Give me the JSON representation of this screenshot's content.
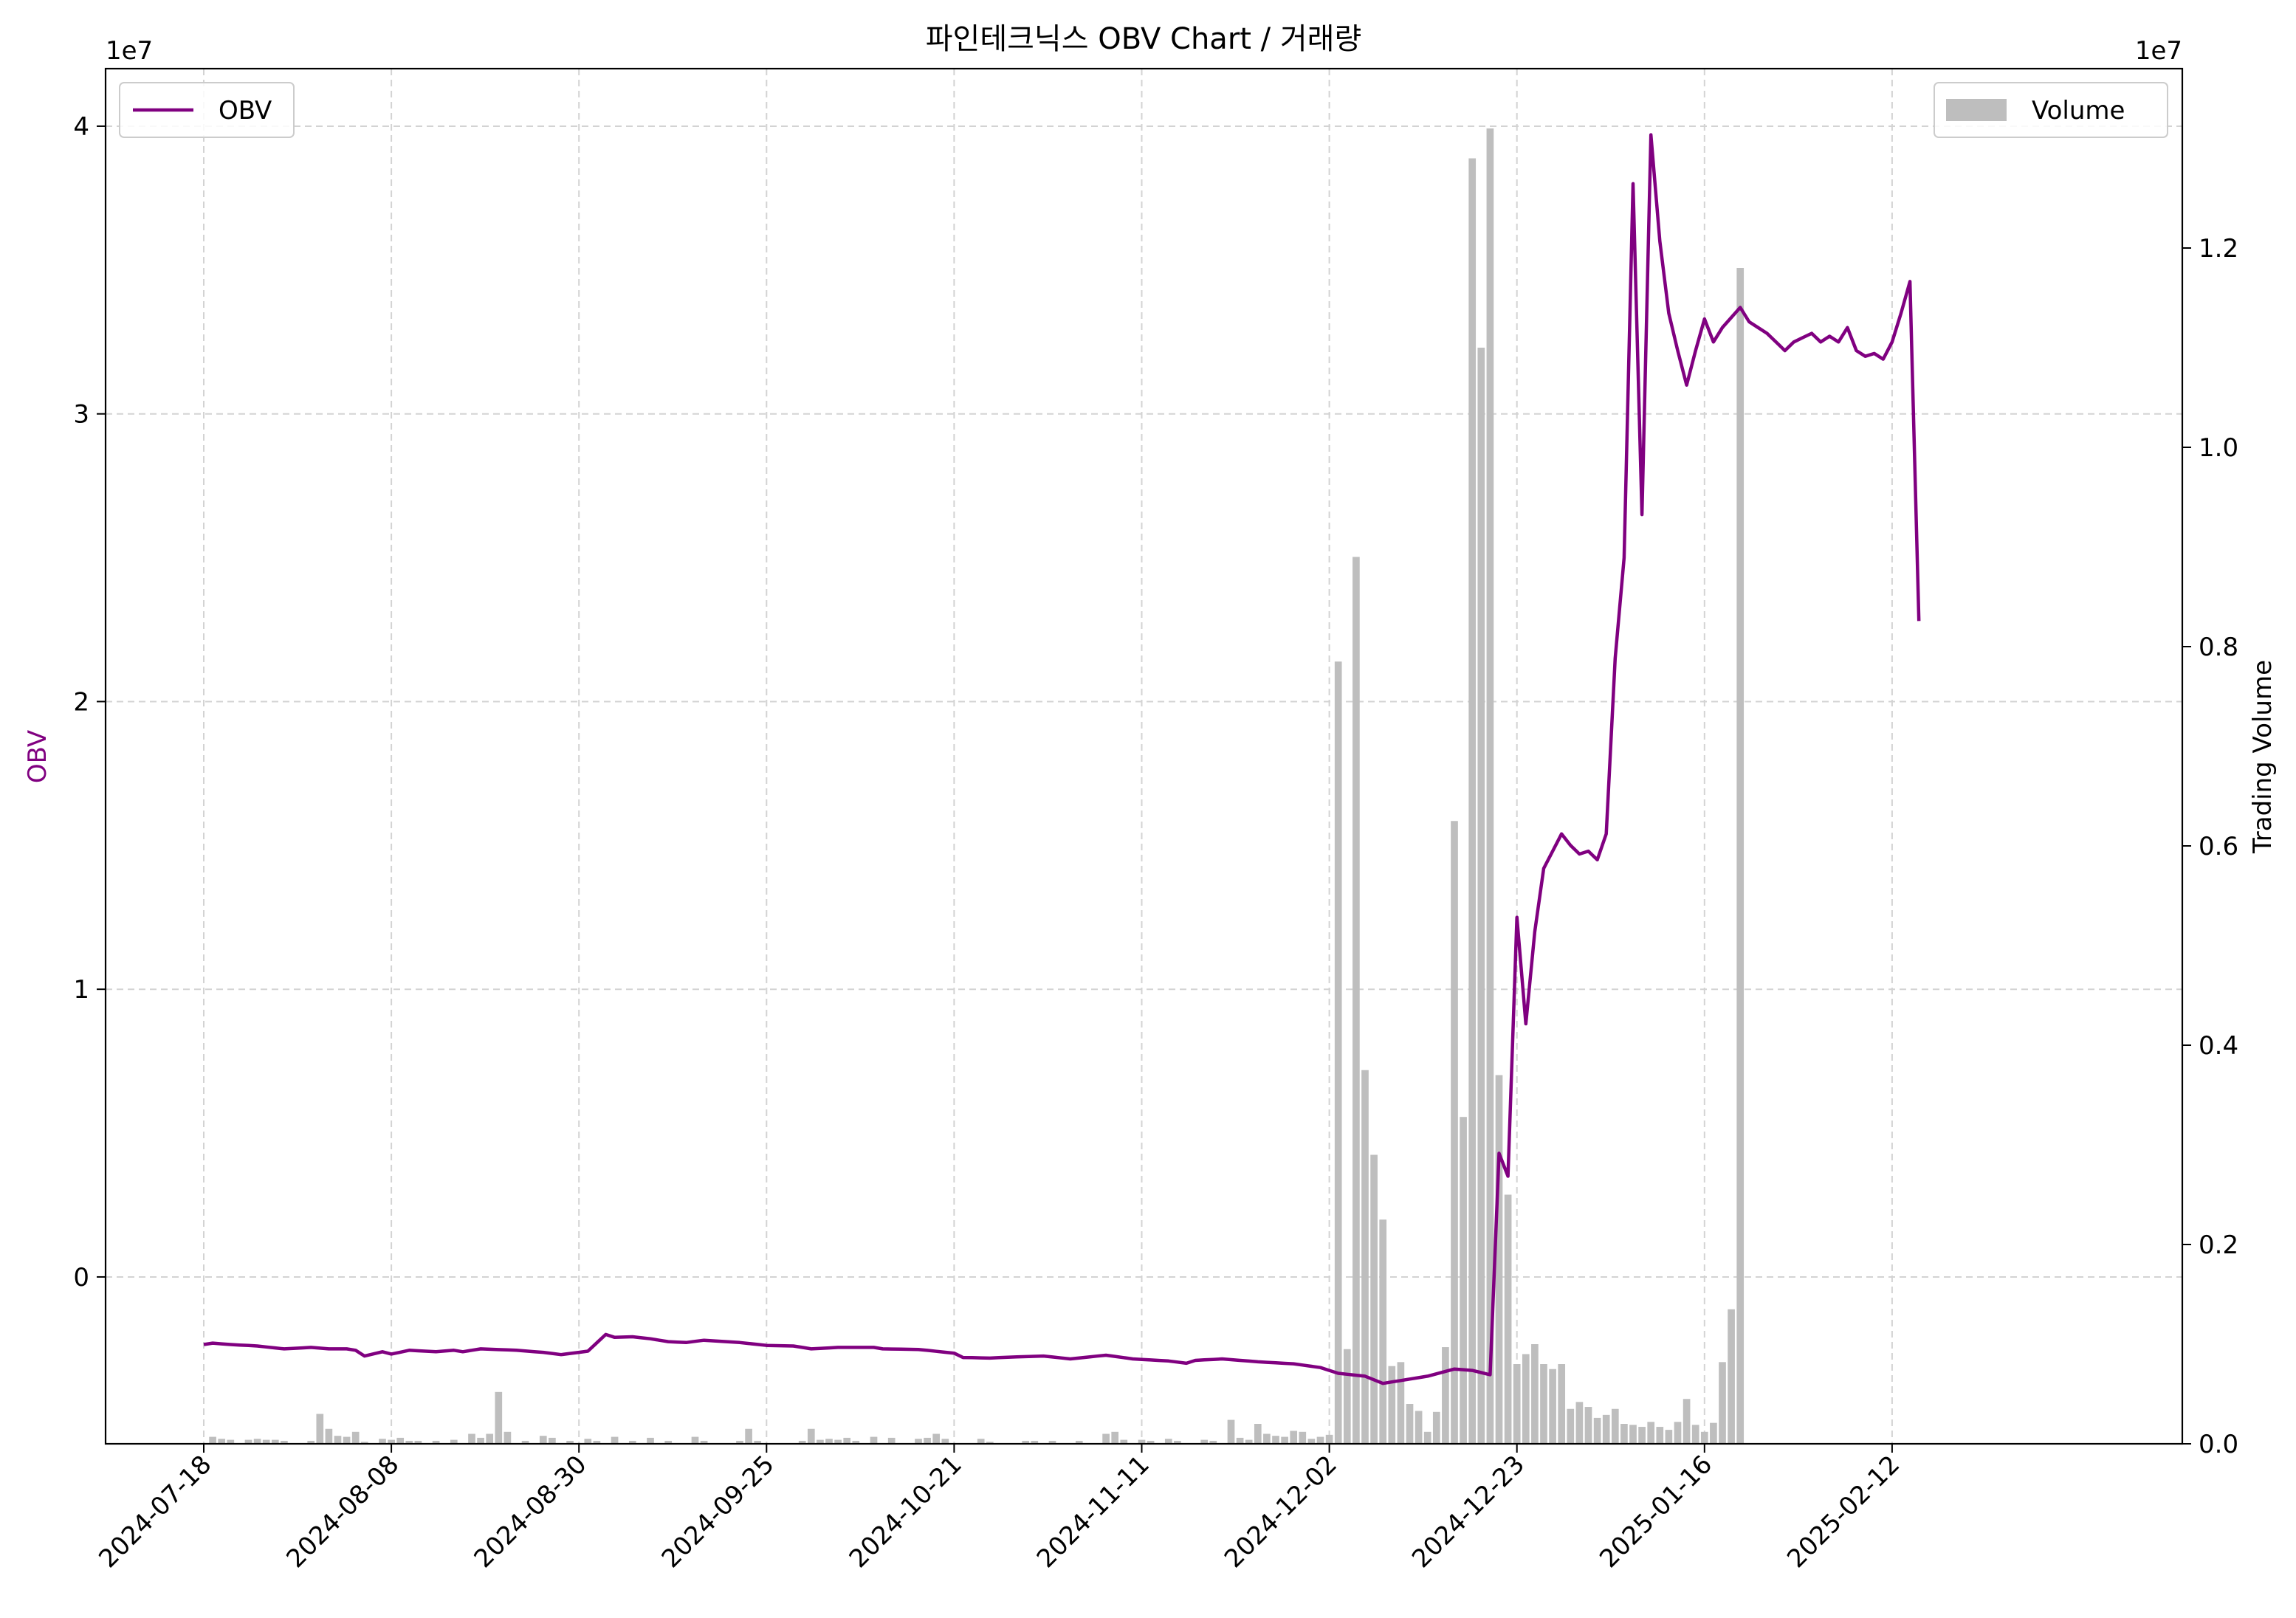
{
  "chart_data": {
    "type": "line+bar",
    "title": "파인테크닉스 OBV Chart / 거래량",
    "xlabel": "",
    "ylabel_left": "OBV",
    "ylabel_right": "Trading Volume",
    "left_axis": {
      "exponent_label": "1e7",
      "ylim": [
        -0.58,
        4.2
      ],
      "ticks": [
        0,
        1,
        2,
        3,
        4
      ],
      "tick_labels": [
        "0",
        "1",
        "2",
        "3",
        "4"
      ]
    },
    "right_axis": {
      "exponent_label": "1e7",
      "ylim": [
        0,
        1.38
      ],
      "ticks": [
        0.0,
        0.2,
        0.4,
        0.6,
        0.8,
        1.0,
        1.2
      ],
      "tick_labels": [
        "0.0",
        "0.2",
        "0.4",
        "0.6",
        "0.8",
        "1.0",
        "1.2"
      ]
    },
    "x_axis": {
      "n_points": 216,
      "tick_indices": [
        0,
        21,
        42,
        63,
        84,
        105,
        126,
        147,
        168,
        189
      ],
      "tick_labels": [
        "2024-07-18",
        "2024-08-08",
        "2024-08-30",
        "2024-09-25",
        "2024-10-21",
        "2024-11-11",
        "2024-12-02",
        "2024-12-23",
        "2025-01-16",
        "2025-02-12"
      ]
    },
    "grid": true,
    "legend_left": {
      "position": "upper-left",
      "label": "OBV"
    },
    "legend_right": {
      "position": "upper-right",
      "label": "Volume"
    },
    "colors": {
      "obv": "#800080",
      "volume": "#bebebe",
      "grid": "#d3d3d3"
    },
    "series": [
      {
        "name": "OBV",
        "axis": "left",
        "kind": "line",
        "points": [
          [
            0,
            -0.235
          ],
          [
            1,
            -0.23
          ],
          [
            3,
            -0.235
          ],
          [
            6,
            -0.24
          ],
          [
            9,
            -0.25
          ],
          [
            12,
            -0.245
          ],
          [
            14,
            -0.25
          ],
          [
            16,
            -0.25
          ],
          [
            17,
            -0.255
          ],
          [
            18,
            -0.275
          ],
          [
            20,
            -0.26
          ],
          [
            21,
            -0.268
          ],
          [
            23,
            -0.255
          ],
          [
            26,
            -0.26
          ],
          [
            28,
            -0.255
          ],
          [
            29,
            -0.26
          ],
          [
            31,
            -0.25
          ],
          [
            35,
            -0.255
          ],
          [
            38,
            -0.262
          ],
          [
            40,
            -0.27
          ],
          [
            43,
            -0.258
          ],
          [
            45,
            -0.2
          ],
          [
            46,
            -0.21
          ],
          [
            48,
            -0.208
          ],
          [
            50,
            -0.215
          ],
          [
            52,
            -0.225
          ],
          [
            54,
            -0.228
          ],
          [
            56,
            -0.22
          ],
          [
            60,
            -0.228
          ],
          [
            63,
            -0.238
          ],
          [
            66,
            -0.24
          ],
          [
            68,
            -0.25
          ],
          [
            71,
            -0.245
          ],
          [
            75,
            -0.245
          ],
          [
            76,
            -0.25
          ],
          [
            80,
            -0.252
          ],
          [
            84,
            -0.265
          ],
          [
            85,
            -0.28
          ],
          [
            88,
            -0.282
          ],
          [
            91,
            -0.278
          ],
          [
            94,
            -0.275
          ],
          [
            97,
            -0.285
          ],
          [
            101,
            -0.272
          ],
          [
            104,
            -0.285
          ],
          [
            108,
            -0.292
          ],
          [
            110,
            -0.3
          ],
          [
            111,
            -0.29
          ],
          [
            114,
            -0.285
          ],
          [
            118,
            -0.295
          ],
          [
            122,
            -0.302
          ],
          [
            125,
            -0.315
          ],
          [
            127,
            -0.335
          ],
          [
            130,
            -0.345
          ],
          [
            132,
            -0.37
          ],
          [
            134,
            -0.36
          ],
          [
            137,
            -0.345
          ],
          [
            140,
            -0.32
          ],
          [
            142,
            -0.325
          ],
          [
            144,
            -0.34
          ],
          [
            145,
            0.43
          ],
          [
            146,
            0.35
          ],
          [
            147,
            1.25
          ],
          [
            148,
            0.88
          ],
          [
            149,
            1.2
          ],
          [
            150,
            1.42
          ],
          [
            152,
            1.54
          ],
          [
            153,
            1.5
          ],
          [
            154,
            1.47
          ],
          [
            155,
            1.48
          ],
          [
            156,
            1.45
          ],
          [
            157,
            1.54
          ],
          [
            158,
            2.15
          ],
          [
            159,
            2.5
          ],
          [
            160,
            3.8
          ],
          [
            161,
            2.65
          ],
          [
            162,
            3.97
          ],
          [
            163,
            3.6
          ],
          [
            164,
            3.35
          ],
          [
            165,
            3.22
          ],
          [
            166,
            3.1
          ],
          [
            167,
            3.22
          ],
          [
            168,
            3.33
          ],
          [
            169,
            3.25
          ],
          [
            170,
            3.3
          ],
          [
            172,
            3.37
          ],
          [
            173,
            3.32
          ],
          [
            175,
            3.28
          ],
          [
            176,
            3.25
          ],
          [
            177,
            3.22
          ],
          [
            178,
            3.25
          ],
          [
            180,
            3.28
          ],
          [
            181,
            3.25
          ],
          [
            182,
            3.27
          ],
          [
            183,
            3.25
          ],
          [
            184,
            3.3
          ],
          [
            185,
            3.22
          ],
          [
            186,
            3.2
          ],
          [
            187,
            3.21
          ],
          [
            188,
            3.19
          ],
          [
            189,
            3.25
          ],
          [
            190,
            3.35
          ],
          [
            191,
            3.46
          ],
          [
            192,
            2.28
          ]
        ]
      },
      {
        "name": "Volume",
        "axis": "right",
        "kind": "bar",
        "bars": [
          [
            1,
            0.007
          ],
          [
            2,
            0.005
          ],
          [
            3,
            0.004
          ],
          [
            5,
            0.004
          ],
          [
            6,
            0.005
          ],
          [
            7,
            0.004
          ],
          [
            8,
            0.004
          ],
          [
            9,
            0.003
          ],
          [
            12,
            0.003
          ],
          [
            13,
            0.03
          ],
          [
            14,
            0.015
          ],
          [
            15,
            0.008
          ],
          [
            16,
            0.007
          ],
          [
            17,
            0.012
          ],
          [
            18,
            0.002
          ],
          [
            20,
            0.005
          ],
          [
            21,
            0.004
          ],
          [
            22,
            0.006
          ],
          [
            23,
            0.003
          ],
          [
            24,
            0.003
          ],
          [
            26,
            0.003
          ],
          [
            28,
            0.004
          ],
          [
            30,
            0.01
          ],
          [
            31,
            0.006
          ],
          [
            32,
            0.01
          ],
          [
            33,
            0.052
          ],
          [
            34,
            0.012
          ],
          [
            36,
            0.003
          ],
          [
            38,
            0.008
          ],
          [
            39,
            0.006
          ],
          [
            41,
            0.003
          ],
          [
            43,
            0.005
          ],
          [
            44,
            0.003
          ],
          [
            46,
            0.007
          ],
          [
            48,
            0.003
          ],
          [
            50,
            0.006
          ],
          [
            52,
            0.003
          ],
          [
            55,
            0.007
          ],
          [
            56,
            0.003
          ],
          [
            60,
            0.003
          ],
          [
            61,
            0.015
          ],
          [
            62,
            0.003
          ],
          [
            67,
            0.003
          ],
          [
            68,
            0.015
          ],
          [
            69,
            0.004
          ],
          [
            70,
            0.005
          ],
          [
            71,
            0.004
          ],
          [
            72,
            0.006
          ],
          [
            73,
            0.003
          ],
          [
            75,
            0.007
          ],
          [
            77,
            0.006
          ],
          [
            80,
            0.005
          ],
          [
            81,
            0.006
          ],
          [
            82,
            0.01
          ],
          [
            83,
            0.005
          ],
          [
            87,
            0.005
          ],
          [
            88,
            0.002
          ],
          [
            92,
            0.003
          ],
          [
            93,
            0.003
          ],
          [
            95,
            0.003
          ],
          [
            98,
            0.003
          ],
          [
            101,
            0.01
          ],
          [
            102,
            0.012
          ],
          [
            103,
            0.004
          ],
          [
            105,
            0.004
          ],
          [
            106,
            0.003
          ],
          [
            108,
            0.005
          ],
          [
            109,
            0.003
          ],
          [
            112,
            0.004
          ],
          [
            113,
            0.003
          ],
          [
            115,
            0.024
          ],
          [
            116,
            0.006
          ],
          [
            117,
            0.004
          ],
          [
            118,
            0.02
          ],
          [
            119,
            0.01
          ],
          [
            120,
            0.008
          ],
          [
            121,
            0.007
          ],
          [
            122,
            0.013
          ],
          [
            123,
            0.012
          ],
          [
            124,
            0.005
          ],
          [
            125,
            0.007
          ],
          [
            126,
            0.009
          ],
          [
            127,
            0.785
          ],
          [
            128,
            0.095
          ],
          [
            129,
            0.89
          ],
          [
            130,
            0.375
          ],
          [
            131,
            0.29
          ],
          [
            132,
            0.225
          ],
          [
            133,
            0.078
          ],
          [
            134,
            0.082
          ],
          [
            135,
            0.04
          ],
          [
            136,
            0.033
          ],
          [
            137,
            0.012
          ],
          [
            138,
            0.032
          ],
          [
            139,
            0.097
          ],
          [
            140,
            0.625
          ],
          [
            141,
            0.328
          ],
          [
            142,
            1.29
          ],
          [
            143,
            1.1
          ],
          [
            144,
            1.32
          ],
          [
            145,
            0.37
          ],
          [
            146,
            0.25
          ],
          [
            147,
            0.08
          ],
          [
            148,
            0.09
          ],
          [
            149,
            0.1
          ],
          [
            150,
            0.08
          ],
          [
            151,
            0.075
          ],
          [
            152,
            0.08
          ],
          [
            153,
            0.035
          ],
          [
            154,
            0.042
          ],
          [
            155,
            0.037
          ],
          [
            156,
            0.026
          ],
          [
            157,
            0.029
          ],
          [
            158,
            0.035
          ],
          [
            159,
            0.02
          ],
          [
            160,
            0.019
          ],
          [
            161,
            0.017
          ],
          [
            162,
            0.022
          ],
          [
            163,
            0.017
          ],
          [
            164,
            0.014
          ],
          [
            165,
            0.022
          ],
          [
            166,
            0.045
          ],
          [
            167,
            0.019
          ],
          [
            168,
            0.012
          ],
          [
            169,
            0.021
          ],
          [
            170,
            0.082
          ],
          [
            171,
            0.135
          ],
          [
            172,
            1.18
          ]
        ]
      }
    ]
  }
}
